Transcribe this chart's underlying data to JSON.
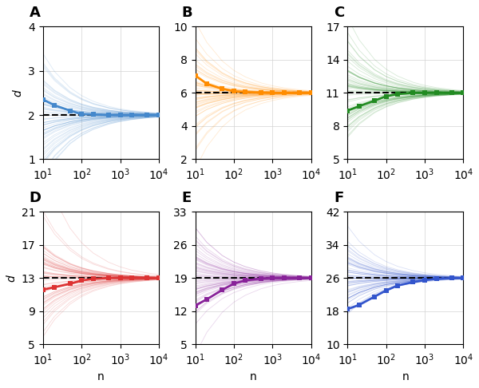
{
  "panels": [
    {
      "label": "A",
      "color": "#4488CC",
      "true_d": 2,
      "ylim": [
        1,
        4
      ],
      "yticks": [
        1,
        2,
        3,
        4
      ],
      "ylabel": true,
      "spread": 1.5,
      "start_above": true
    },
    {
      "label": "B",
      "color": "#FF8C00",
      "true_d": 6,
      "ylim": [
        2,
        10
      ],
      "yticks": [
        2,
        4,
        6,
        8,
        10
      ],
      "ylabel": false,
      "spread": 3.5,
      "start_above": true
    },
    {
      "label": "C",
      "color": "#228B22",
      "true_d": 11,
      "ylim": [
        5,
        17
      ],
      "yticks": [
        5,
        8,
        11,
        14,
        17
      ],
      "ylabel": false,
      "spread": 5.0,
      "start_above": true
    },
    {
      "label": "D",
      "color": "#DD3333",
      "true_d": 13,
      "ylim": [
        5,
        21
      ],
      "yticks": [
        5,
        9,
        13,
        17,
        21
      ],
      "ylabel": true,
      "spread": 7.0,
      "start_above": true
    },
    {
      "label": "E",
      "color": "#882299",
      "true_d": 19,
      "ylim": [
        5,
        33
      ],
      "yticks": [
        5,
        12,
        19,
        26,
        33
      ],
      "ylabel": false,
      "spread": 10.0,
      "start_above": false
    },
    {
      "label": "F",
      "color": "#3355CC",
      "true_d": 26,
      "ylim": [
        10,
        42
      ],
      "yticks": [
        10,
        18,
        26,
        34,
        42
      ],
      "ylabel": false,
      "spread": 12.0,
      "start_above": false
    }
  ],
  "n_values": [
    10,
    20,
    50,
    100,
    200,
    500,
    1000,
    2000,
    5000,
    10000
  ],
  "n_spaghetti": 60,
  "alpha_spaghetti": 0.18,
  "linewidth_spaghetti": 0.6,
  "linewidth_median": 2.0,
  "marker": "s",
  "markersize": 5,
  "dashed_linewidth": 1.5,
  "xlabel": "n",
  "ylabel": "d",
  "seed": 42,
  "median_values": {
    "2": [
      2.35,
      2.22,
      2.1,
      2.02,
      2.01,
      2.0,
      2.0,
      2.0,
      2.0,
      2.0
    ],
    "6": [
      7.05,
      6.55,
      6.25,
      6.1,
      6.05,
      6.02,
      6.01,
      6.0,
      6.0,
      6.0
    ],
    "11": [
      9.4,
      9.8,
      10.3,
      10.7,
      10.9,
      11.0,
      11.0,
      11.0,
      11.0,
      11.0
    ],
    "13": [
      11.6,
      11.9,
      12.3,
      12.7,
      12.9,
      13.0,
      13.0,
      13.0,
      13.0,
      13.0
    ],
    "19": [
      13.2,
      14.5,
      16.5,
      17.8,
      18.5,
      18.9,
      19.0,
      19.0,
      19.0,
      19.0
    ],
    "26": [
      18.5,
      19.5,
      21.5,
      23.0,
      24.2,
      25.0,
      25.5,
      25.8,
      26.0,
      26.0
    ]
  }
}
